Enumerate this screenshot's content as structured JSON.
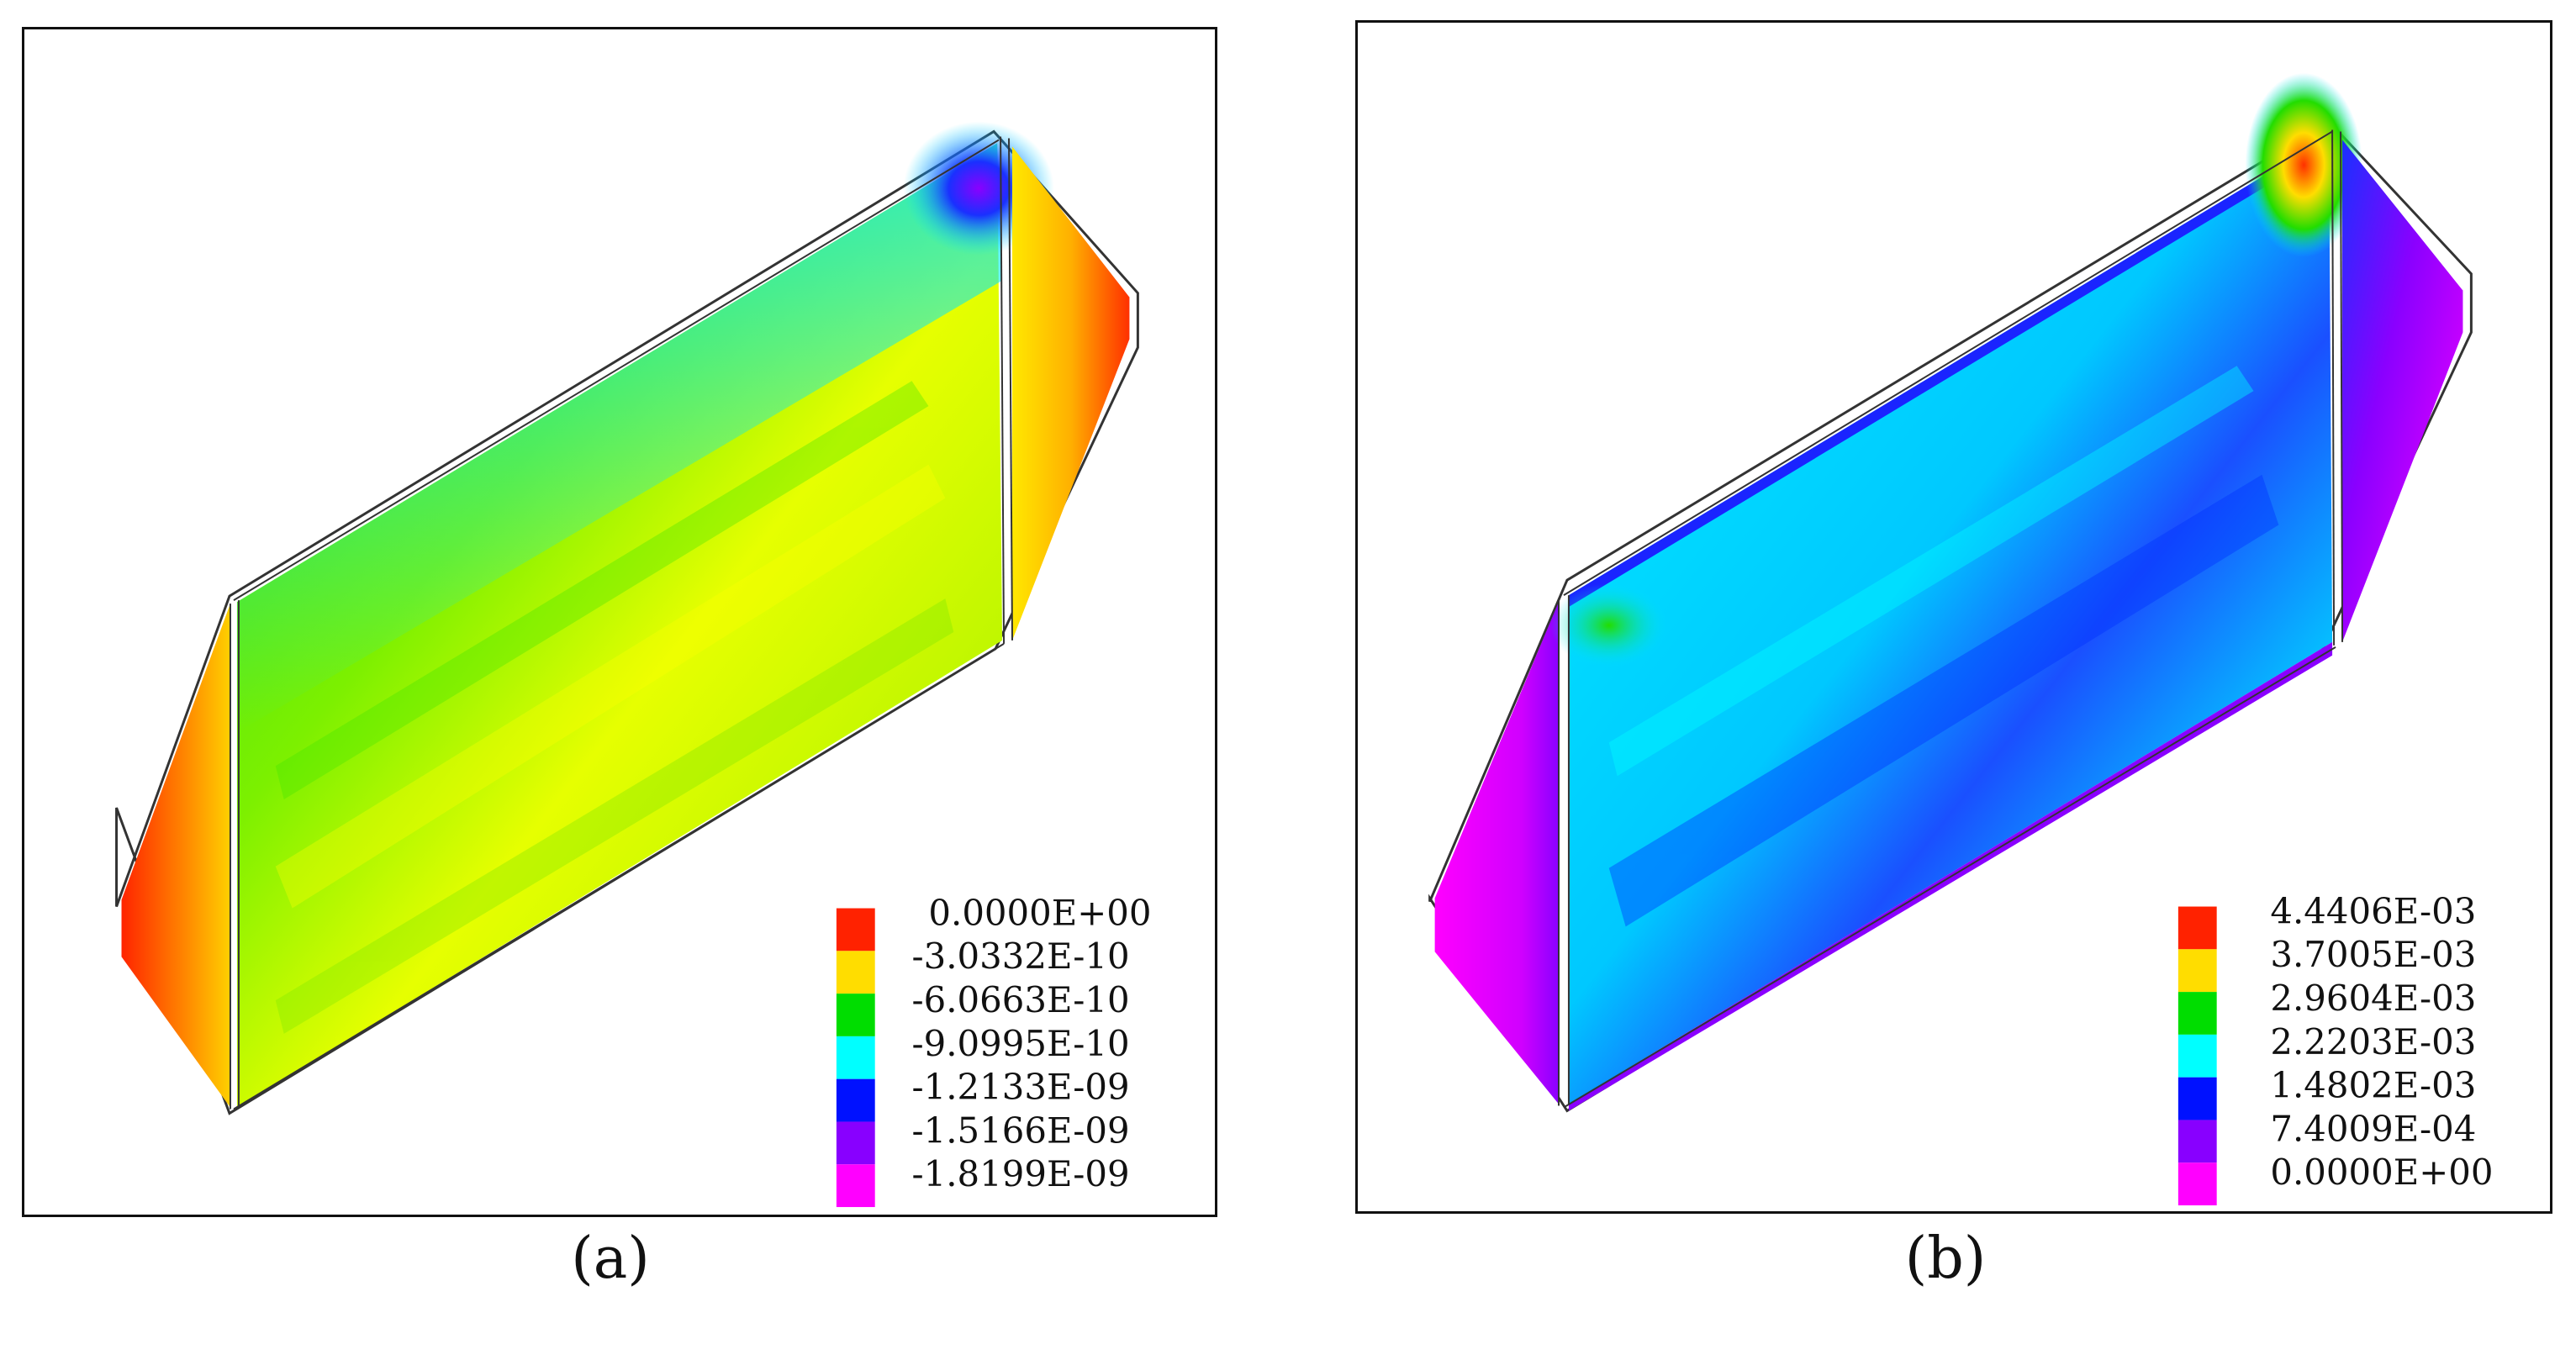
{
  "figure": {
    "panels": [
      {
        "caption": "(a)",
        "colormap": [
          "#ff1a00",
          "#ffcc00",
          "#e8ff00",
          "#22e000",
          "#00e5ff",
          "#1a24ff",
          "#8a00ff",
          "#ff00ff"
        ],
        "legend": {
          "colors": [
            "#ff2200",
            "#ffdd00",
            "#00dd00",
            "#00ffff",
            "#0011ff",
            "#8800ff",
            "#ff00ff"
          ],
          "labels": [
            "0.0000E+00",
            "-3.0332E-10",
            "-6.0663E-10",
            "-9.0995E-10",
            "-1.2133E-09",
            "-1.5166E-09",
            "-1.8199E-09"
          ]
        }
      },
      {
        "caption": "(b)",
        "colormap": [
          "#ff1a00",
          "#ffcc00",
          "#e8ff00",
          "#22e000",
          "#00e5ff",
          "#1a24ff",
          "#8a00ff",
          "#ff00ff"
        ],
        "legend": {
          "colors": [
            "#ff2200",
            "#ffdd00",
            "#00dd00",
            "#00ffff",
            "#0011ff",
            "#8800ff",
            "#ff00ff"
          ],
          "labels": [
            "4.4406E-03",
            "3.7005E-03",
            "2.9604E-03",
            "2.2203E-03",
            "1.4802E-03",
            "7.4009E-04",
            "0.0000E+00"
          ]
        }
      }
    ]
  }
}
